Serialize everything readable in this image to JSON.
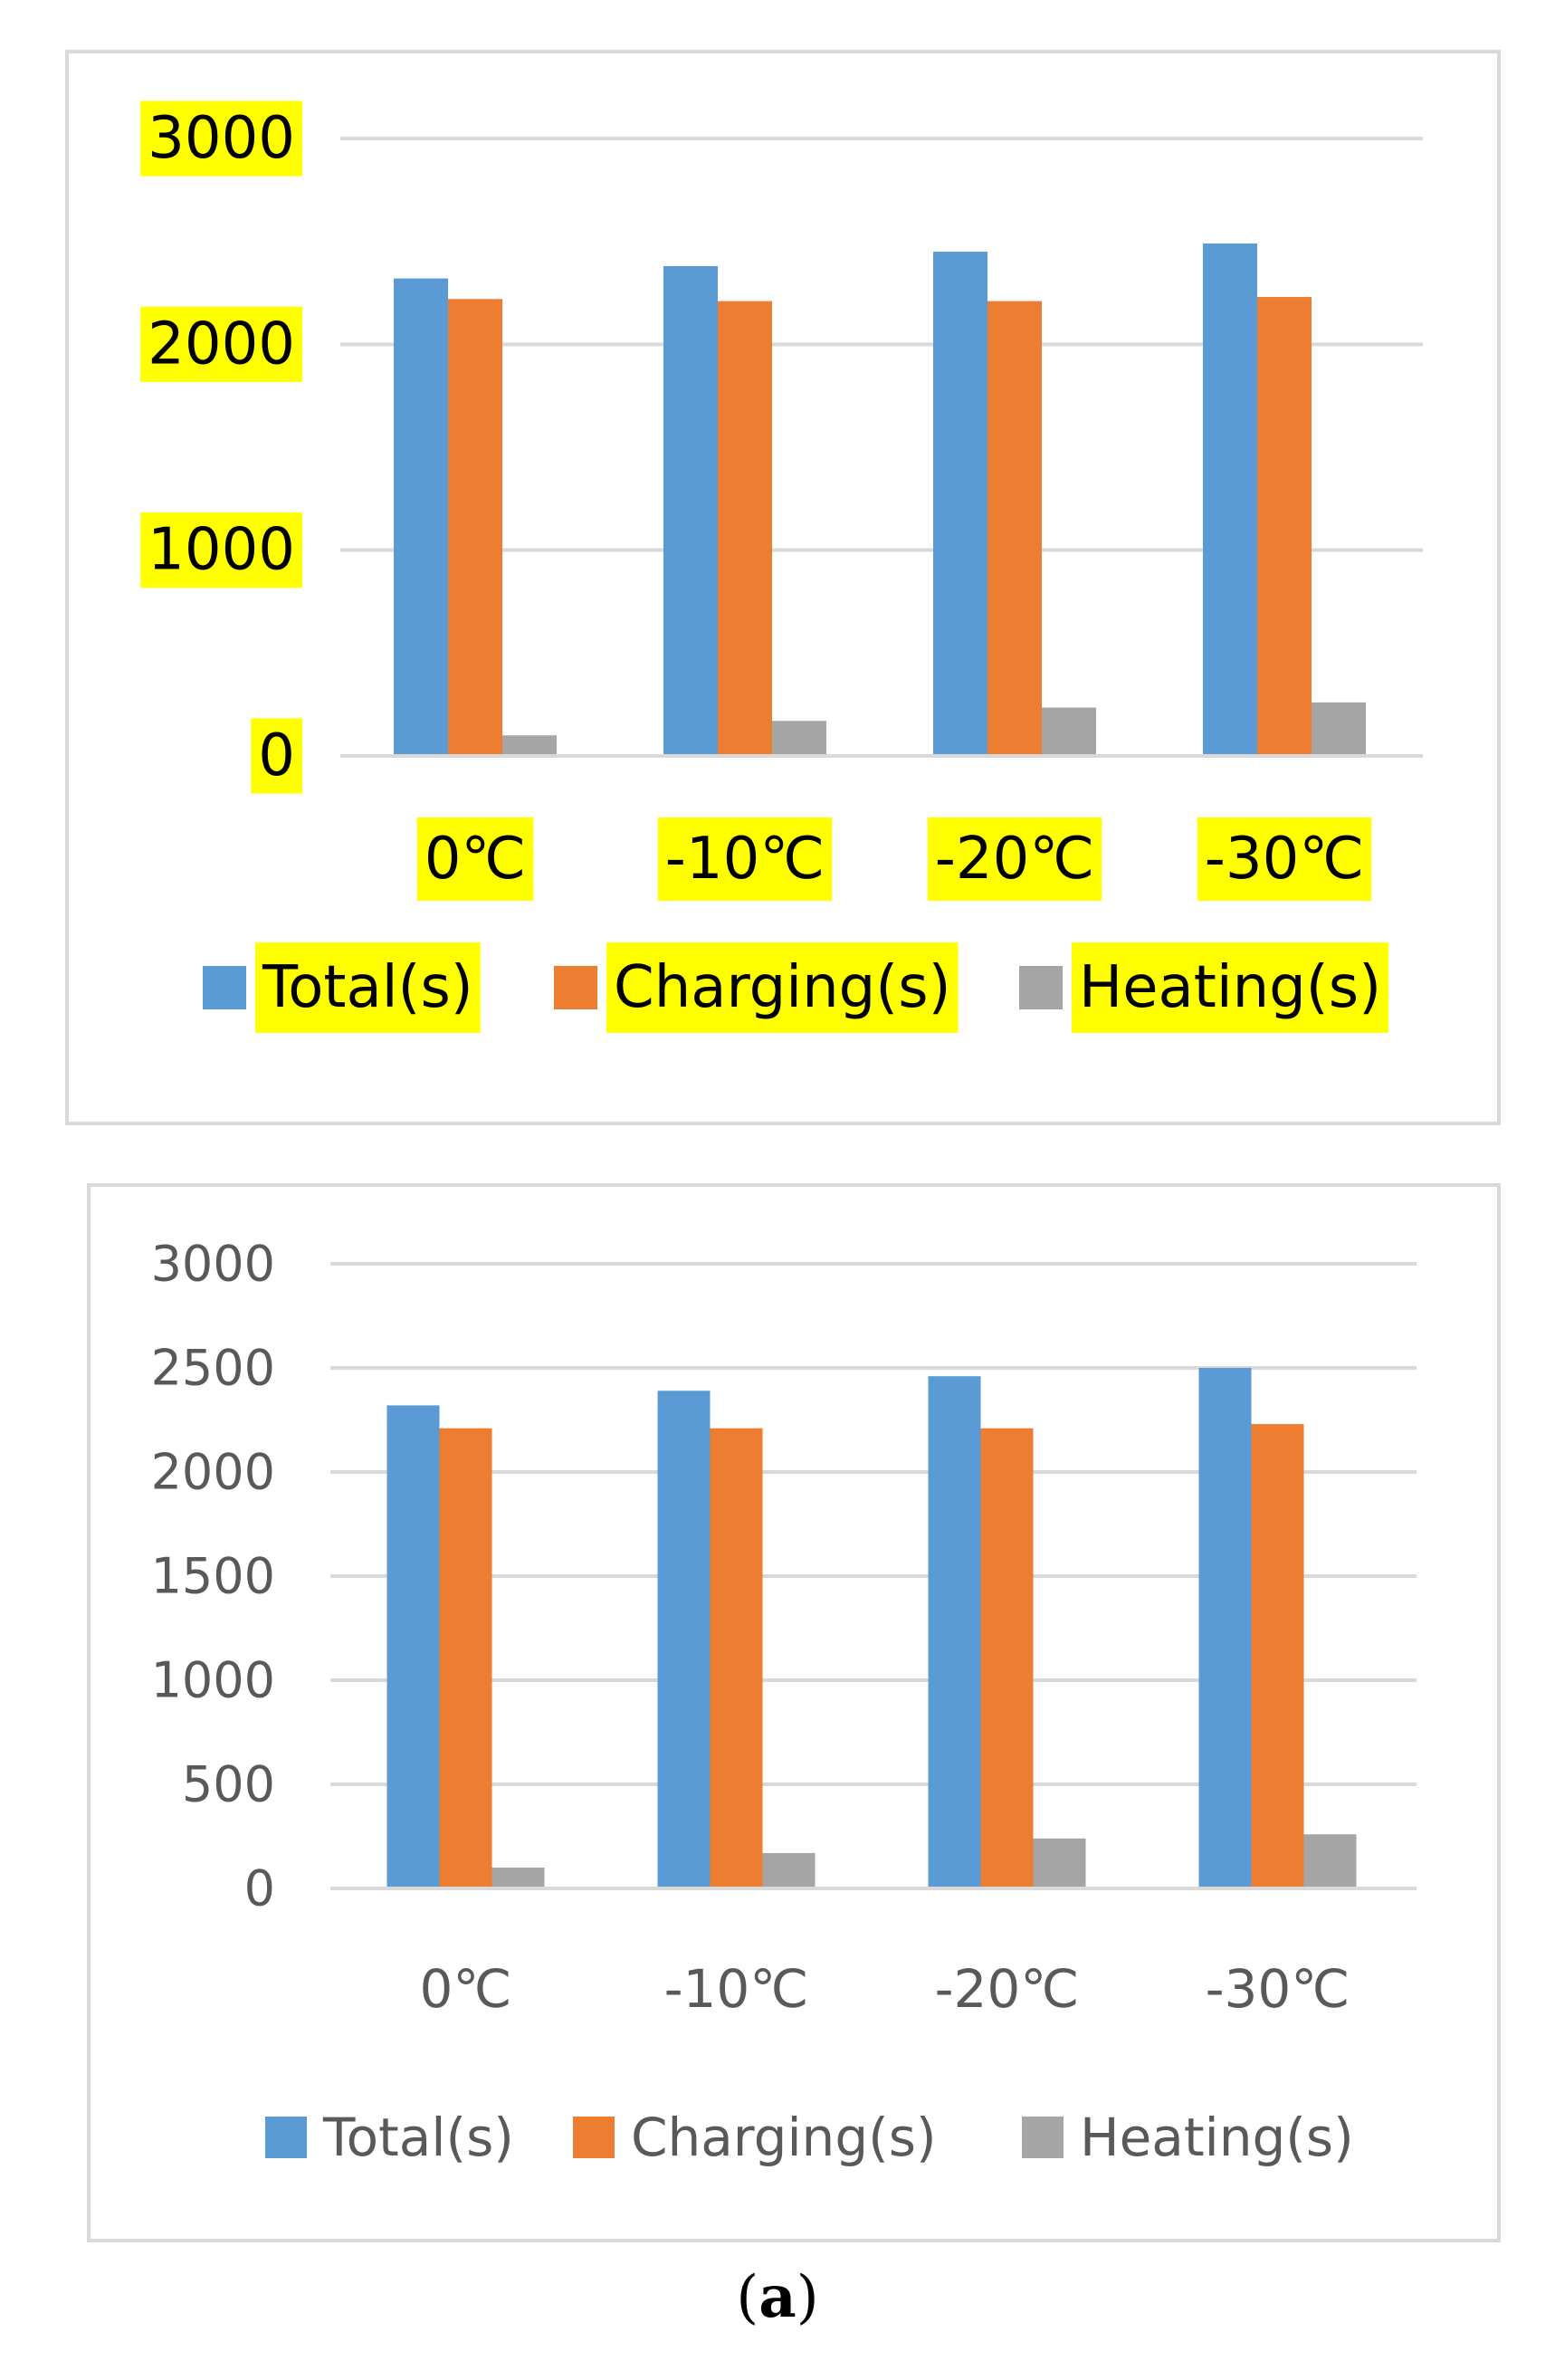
{
  "chart_data": [
    {
      "type": "bar",
      "highlighted": true,
      "categories": [
        "0℃",
        "-10℃",
        "-20℃",
        "-30℃"
      ],
      "y_ticks": [
        "0",
        "1000",
        "2000",
        "3000"
      ],
      "ylim": [
        0,
        3000
      ],
      "series": [
        {
          "name": "Total(s)",
          "color": "#5b9bd5",
          "values": [
            2320,
            2380,
            2450,
            2490
          ]
        },
        {
          "name": "Charging(s)",
          "color": "#ed7d31",
          "values": [
            2220,
            2210,
            2210,
            2230
          ]
        },
        {
          "name": "Heating(s)",
          "color": "#a5a5a5",
          "values": [
            100,
            170,
            235,
            260
          ]
        }
      ],
      "highlight_color": "#ffff00",
      "grid": true,
      "legend": "bottom"
    },
    {
      "type": "bar",
      "highlighted": false,
      "categories": [
        "0℃",
        "-10℃",
        "-20℃",
        "-30℃"
      ],
      "y_ticks": [
        "0",
        "500",
        "1000",
        "1500",
        "2000",
        "2500",
        "3000"
      ],
      "ylim": [
        0,
        3000
      ],
      "series": [
        {
          "name": "Total(s)",
          "color": "#5b9bd5",
          "values": [
            2320,
            2390,
            2460,
            2500
          ]
        },
        {
          "name": "Charging(s)",
          "color": "#ed7d31",
          "values": [
            2210,
            2210,
            2210,
            2230
          ]
        },
        {
          "name": "Heating(s)",
          "color": "#a5a5a5",
          "values": [
            100,
            170,
            240,
            260
          ]
        }
      ],
      "grid": true,
      "legend": "bottom"
    }
  ],
  "caption": {
    "open": "(",
    "letter": "a",
    "close": ")"
  }
}
